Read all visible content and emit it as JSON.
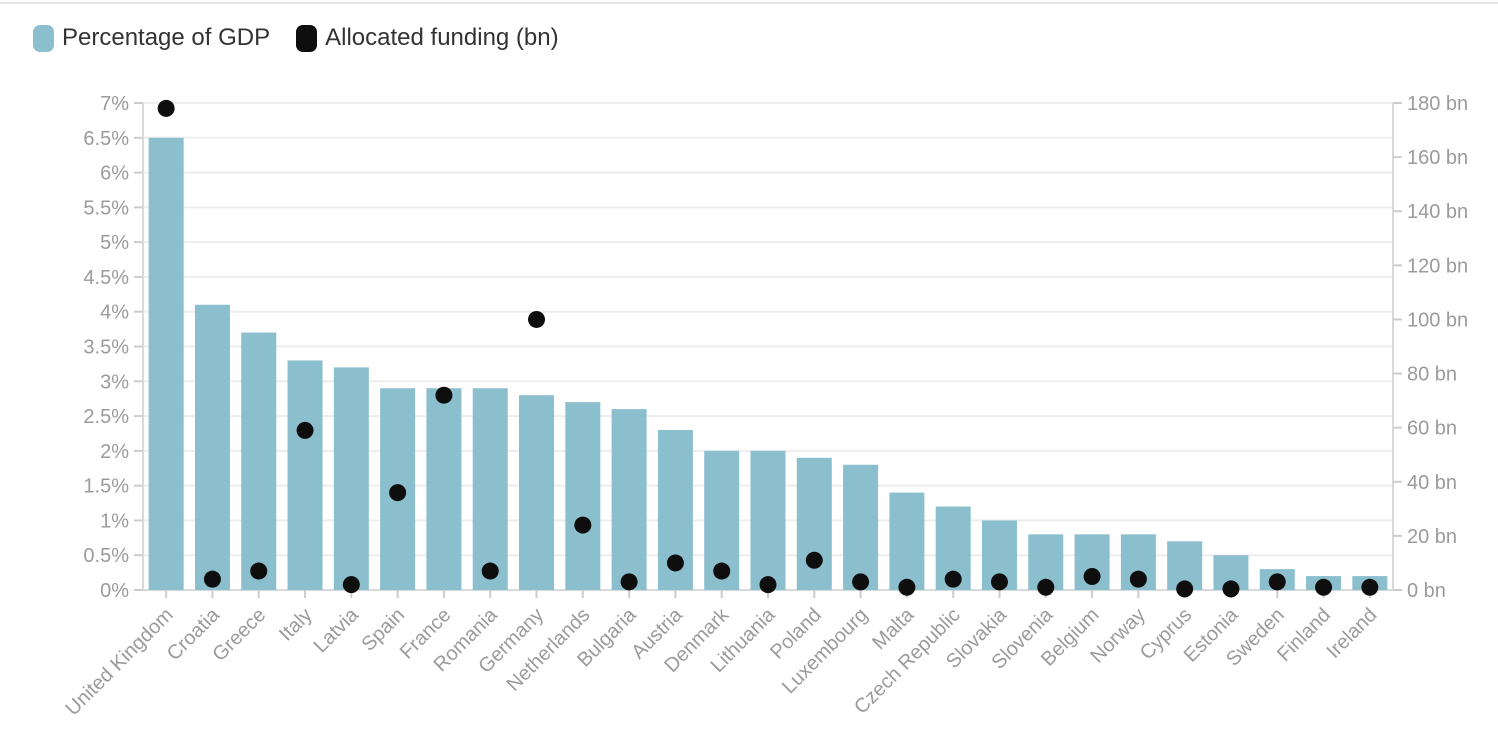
{
  "legend": {
    "items": [
      {
        "label": "Percentage of GDP",
        "swatch_color": "#8BBFCE"
      },
      {
        "label": "Allocated funding (bn)",
        "swatch_color": "#0e0e0e"
      }
    ]
  },
  "chart_data": {
    "type": "bar",
    "subtype": "dual-axis combo: bars (left axis, % of GDP) + black dots (right axis, bn)",
    "title": "",
    "xlabel": "",
    "ylabel_left": "Percentage of GDP",
    "ylabel_right": "Allocated funding (bn)",
    "grid": true,
    "legend_position": "top-left",
    "categories": [
      "United Kingdom",
      "Croatia",
      "Greece",
      "Italy",
      "Latvia",
      "Spain",
      "France",
      "Romania",
      "Germany",
      "Netherlands",
      "Bulgaria",
      "Austria",
      "Denmark",
      "Lithuania",
      "Poland",
      "Luxembourg",
      "Malta",
      "Czech Republic",
      "Slovakia",
      "Slovenia",
      "Belgium",
      "Norway",
      "Cyprus",
      "Estonia",
      "Sweden",
      "Finland",
      "Ireland"
    ],
    "series": [
      {
        "name": "Percentage of GDP",
        "type": "bar",
        "axis": "left",
        "unit": "%",
        "values": [
          6.5,
          4.1,
          3.7,
          3.3,
          3.2,
          2.9,
          2.9,
          2.9,
          2.8,
          2.7,
          2.6,
          2.3,
          2.0,
          2.0,
          1.9,
          1.8,
          1.4,
          1.2,
          1.0,
          0.8,
          0.8,
          0.8,
          0.7,
          0.5,
          0.3,
          0.2,
          0.2
        ]
      },
      {
        "name": "Allocated funding (bn)",
        "type": "scatter",
        "axis": "right",
        "unit": "bn",
        "values": [
          178,
          4,
          7,
          59,
          2,
          36,
          72,
          7,
          100,
          24,
          3,
          10,
          7,
          2,
          11,
          3,
          1,
          4,
          3,
          1,
          5,
          4,
          0.4,
          0.4,
          3,
          1,
          1
        ]
      }
    ],
    "left_axis": {
      "min": 0,
      "max": 7,
      "tick_step": 0.5,
      "tick_suffix": "%",
      "tick_labels": [
        "0%",
        "0.5%",
        "1%",
        "1.5%",
        "2%",
        "2.5%",
        "3%",
        "3.5%",
        "4%",
        "4.5%",
        "5%",
        "5.5%",
        "6%",
        "6.5%",
        "7%"
      ]
    },
    "right_axis": {
      "min": 0,
      "max": 180,
      "tick_step": 20,
      "tick_suffix": " bn",
      "tick_labels": [
        "0 bn",
        "20 bn",
        "40 bn",
        "60 bn",
        "80 bn",
        "100 bn",
        "120 bn",
        "140 bn",
        "160 bn",
        "180 bn"
      ]
    }
  },
  "colors": {
    "bar": "#8BBFCE",
    "dot": "#0e0e0e",
    "grid": "#ededed",
    "axis_line": "#d9d9d9",
    "tick": "#cccccc",
    "axis_label": "#9b9b9b",
    "legend_text": "#333333",
    "top_divider": "#e4e4e4"
  }
}
